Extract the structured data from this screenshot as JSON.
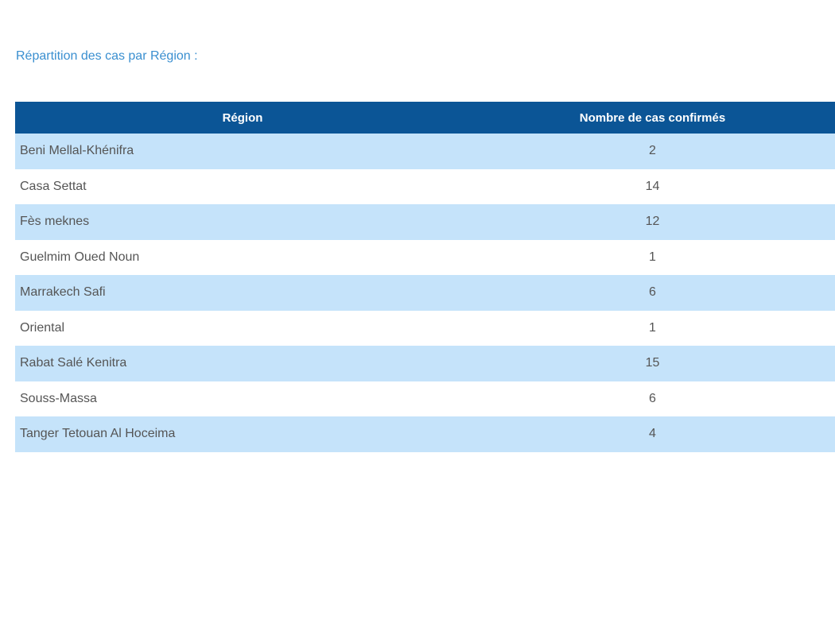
{
  "heading": "Répartition des cas par Région :",
  "table": {
    "columns": [
      "Région",
      "Nombre de cas confirmés"
    ],
    "rows": [
      [
        "Beni Mellal-Khénifra",
        "2"
      ],
      [
        "Casa Settat",
        "14"
      ],
      [
        "Fès meknes",
        "12"
      ],
      [
        "Guelmim Oued Noun",
        "1"
      ],
      [
        "Marrakech Safi",
        "6"
      ],
      [
        "Oriental",
        "1"
      ],
      [
        "Rabat Salé Kenitra",
        "15"
      ],
      [
        "Souss-Massa",
        "6"
      ],
      [
        "Tanger Tetouan Al Hoceima",
        "4"
      ]
    ]
  }
}
